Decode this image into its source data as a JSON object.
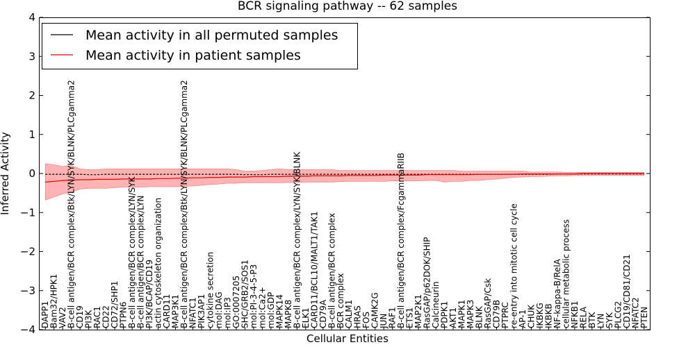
{
  "chart_data": {
    "type": "line",
    "title": "BCR signaling pathway -- 62 samples",
    "xlabel": "Cellular Entities",
    "ylabel": "Inferred Activity",
    "ylim": [
      -4,
      4
    ],
    "yticks": [
      -4,
      -3,
      -2,
      -1,
      0,
      1,
      2,
      3,
      4
    ],
    "ytick_labels": [
      "−4",
      "−3",
      "−2",
      "−1",
      "0",
      "1",
      "2",
      "3",
      "4"
    ],
    "legend_position": "top-left",
    "colors": {
      "permuted": "#000000",
      "patient": "#e00000",
      "band": "#ff9999"
    },
    "categories": [
      "DAPP1",
      "Bam32/HPK1",
      "VAV2",
      "B-cell antigen/BCR complex/Btk/LYN/SYK/BLNK/PLCgamma2",
      "CD19",
      "PI3K",
      "RAC1",
      "CD22",
      "CD72/SHP1",
      "PTPN6",
      "B-cell antigen/BCR complex/LYN/SYK",
      "B-cell antigen/BCR complex/LYN",
      "PI3K/BCAP/CD19",
      "actin cytoskeleton organization",
      "CARD11",
      "MAP3K1",
      "B-cell antigen/BCR complex/Btk/LYN/SYK/BLNK/PLCgamma2",
      "NFATC1",
      "PIK3AP1",
      "cytokine secretion",
      "mol:DAG",
      "mol:IP3",
      "GO:0007205",
      "SHC/GRB2/SOS1",
      "mol:PI-3-4-5-P3",
      "mol:Ca2+",
      "mol:GDP",
      "MAPK14",
      "MAPK8",
      "B-cell antigen/BCR complex/LYN/SYK/BLNK",
      "ELK1",
      "CARD11/BCL10/MALT1/TAK1",
      "CD79A",
      "B-cell antigen/BCR complex",
      "BCR complex",
      "CALM1",
      "HRAS",
      "FOS",
      "CAMK2G",
      "JUN",
      "RAF1",
      "B-cell antigen/BCR complex/FcgammaRIIB",
      "ETS1",
      "MAP2K1",
      "RasGAP/p62DOK/SHIP",
      "Calcineurin",
      "PDPK1",
      "AKT1",
      "MAPK1",
      "MAPK3",
      "BLNK",
      "RasGAP/Csk",
      "CD79B",
      "PTPRC",
      "re-entry into mitotic cell cycle",
      "AP-1",
      "CHUK",
      "IKBKG",
      "IKBKB",
      "NF-kappa-B/RelA",
      "cellular metabolic process",
      "NFKB1",
      "RELA",
      "BTK",
      "LYN",
      "SYK",
      "PLCG2",
      "CD19/CD81/CD21",
      "NFATC2",
      "PTEN"
    ],
    "series": [
      {
        "name": "Mean activity in all permuted samples",
        "color": "#000000",
        "values": [
          -0.02,
          -0.02,
          -0.02,
          -0.02,
          -0.02,
          -0.03,
          -0.03,
          -0.02,
          -0.02,
          -0.02,
          -0.02,
          -0.02,
          -0.02,
          -0.02,
          -0.02,
          -0.02,
          -0.02,
          -0.02,
          -0.02,
          -0.02,
          -0.02,
          -0.02,
          -0.02,
          -0.03,
          -0.03,
          -0.03,
          -0.02,
          -0.02,
          -0.02,
          -0.02,
          -0.02,
          -0.02,
          -0.02,
          -0.02,
          -0.02,
          -0.02,
          -0.02,
          -0.02,
          -0.02,
          -0.02,
          -0.02,
          -0.02,
          -0.02,
          -0.02,
          -0.02,
          -0.02,
          -0.02,
          -0.02,
          -0.02,
          -0.02,
          -0.02,
          -0.02,
          -0.02,
          -0.02,
          -0.02,
          -0.02,
          -0.02,
          -0.02,
          -0.02,
          -0.01,
          -0.01,
          -0.01,
          -0.01,
          -0.01,
          -0.01,
          -0.01,
          -0.01,
          -0.01,
          -0.01,
          -0.01
        ]
      },
      {
        "name": "Mean activity in patient samples",
        "color": "#e00000",
        "values": [
          -0.22,
          -0.2,
          -0.18,
          -0.17,
          -0.16,
          -0.16,
          -0.15,
          -0.15,
          -0.15,
          -0.14,
          -0.14,
          -0.14,
          -0.14,
          -0.13,
          -0.13,
          -0.12,
          -0.12,
          -0.11,
          -0.11,
          -0.1,
          -0.1,
          -0.09,
          -0.09,
          -0.09,
          -0.08,
          -0.08,
          -0.08,
          -0.08,
          -0.07,
          -0.07,
          -0.07,
          -0.06,
          -0.06,
          -0.06,
          -0.06,
          -0.05,
          -0.05,
          -0.05,
          -0.05,
          -0.04,
          -0.04,
          -0.04,
          -0.04,
          -0.04,
          -0.03,
          -0.03,
          -0.03,
          -0.03,
          -0.03,
          -0.03,
          -0.02,
          -0.02,
          -0.02,
          -0.02,
          -0.02,
          -0.01,
          -0.01,
          -0.01,
          -0.01,
          -0.01,
          -0.01,
          -0.01,
          0.0,
          0.0,
          0.0,
          0.0,
          0.0,
          0.0,
          0.0,
          0.0
        ],
        "band_upper": [
          0.25,
          0.22,
          0.18,
          0.2,
          0.12,
          0.1,
          0.1,
          0.12,
          0.12,
          0.12,
          0.12,
          0.12,
          0.12,
          0.12,
          0.12,
          0.12,
          0.12,
          0.12,
          0.12,
          0.12,
          0.12,
          0.12,
          0.1,
          0.06,
          0.06,
          0.08,
          0.1,
          0.12,
          0.1,
          0.1,
          0.1,
          0.1,
          0.1,
          0.1,
          0.08,
          0.08,
          0.08,
          0.08,
          0.08,
          0.08,
          0.08,
          0.08,
          0.08,
          0.08,
          0.08,
          0.08,
          0.08,
          0.08,
          0.06,
          0.06,
          0.06,
          0.06,
          0.06,
          0.06,
          0.06,
          0.06,
          0.04,
          0.04,
          0.04,
          0.04,
          0.03,
          0.03,
          0.03,
          0.03,
          0.03,
          0.03,
          0.03,
          0.03,
          0.03,
          0.03
        ],
        "band_lower": [
          -0.68,
          -0.6,
          -0.52,
          -0.48,
          -0.4,
          -0.38,
          -0.38,
          -0.38,
          -0.36,
          -0.35,
          -0.35,
          -0.35,
          -0.34,
          -0.34,
          -0.34,
          -0.34,
          -0.33,
          -0.32,
          -0.3,
          -0.28,
          -0.27,
          -0.25,
          -0.25,
          -0.24,
          -0.24,
          -0.24,
          -0.24,
          -0.24,
          -0.23,
          -0.23,
          -0.22,
          -0.22,
          -0.22,
          -0.22,
          -0.21,
          -0.2,
          -0.2,
          -0.2,
          -0.2,
          -0.2,
          -0.19,
          -0.19,
          -0.19,
          -0.19,
          -0.18,
          -0.18,
          -0.22,
          -0.2,
          -0.2,
          -0.18,
          -0.18,
          -0.16,
          -0.14,
          -0.12,
          -0.1,
          -0.09,
          -0.08,
          -0.08,
          -0.07,
          -0.06,
          -0.06,
          -0.05,
          -0.05,
          -0.05,
          -0.05,
          -0.05,
          -0.05,
          -0.05,
          -0.05,
          -0.05
        ]
      }
    ]
  }
}
